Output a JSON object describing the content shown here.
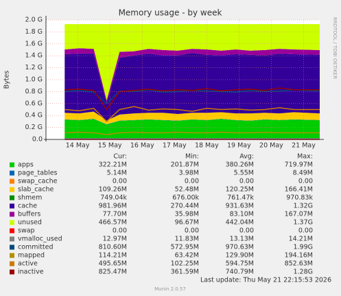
{
  "chart_data": {
    "type": "area",
    "title": "Memory usage - by week",
    "y_label": "Bytes",
    "side_text": "RRDTOOL / TOBI OETIKER",
    "grid": true,
    "x": [
      13.6,
      14.05,
      14.5,
      14.9,
      15.3,
      15.75,
      16.2,
      16.65,
      17.1,
      17.55,
      18.0,
      18.45,
      18.9,
      19.35,
      19.8,
      20.25,
      20.7,
      21.5
    ],
    "xlim": [
      13.02,
      21.5
    ],
    "xticks": [
      {
        "value": 14,
        "label": "14 May"
      },
      {
        "value": 15,
        "label": "15 May"
      },
      {
        "value": 16,
        "label": "16 May"
      },
      {
        "value": 17,
        "label": "17 May"
      },
      {
        "value": 18,
        "label": "18 May"
      },
      {
        "value": 19,
        "label": "19 May"
      },
      {
        "value": 20,
        "label": "20 May"
      },
      {
        "value": 21,
        "label": "21 May"
      }
    ],
    "ylim": [
      0,
      2.0
    ],
    "yticks": [
      {
        "value": 0,
        "label": "0.0"
      },
      {
        "value": 0.2,
        "label": "0.2 G"
      },
      {
        "value": 0.4,
        "label": "0.4 G"
      },
      {
        "value": 0.6,
        "label": "0.6 G"
      },
      {
        "value": 0.8,
        "label": "0.8 G"
      },
      {
        "value": 1.0,
        "label": "1.0 G"
      },
      {
        "value": 1.2,
        "label": "1.2 G"
      },
      {
        "value": 1.4,
        "label": "1.4 G"
      },
      {
        "value": 1.6,
        "label": "1.6 G"
      },
      {
        "value": 1.8,
        "label": "1.8 G"
      },
      {
        "value": 2.0,
        "label": "2.0 G"
      }
    ],
    "legend_headers": [
      "Cur:",
      "Min:",
      "Avg:",
      "Max:"
    ],
    "series": [
      {
        "name": "apps",
        "color": "#00cc00",
        "style": "area",
        "stats": [
          "322.21M",
          "201.87M",
          "380.26M",
          "719.97M"
        ],
        "values": [
          0.33,
          0.32,
          0.34,
          0.25,
          0.31,
          0.32,
          0.33,
          0.32,
          0.31,
          0.33,
          0.32,
          0.34,
          0.32,
          0.31,
          0.33,
          0.32,
          0.33,
          0.32
        ]
      },
      {
        "name": "page_tables",
        "color": "#0066b3",
        "style": "area",
        "stats": [
          "5.14M",
          "3.98M",
          "5.55M",
          "8.49M"
        ],
        "values": [
          0.005,
          0.005,
          0.005,
          0.005,
          0.005,
          0.005,
          0.005,
          0.005,
          0.005,
          0.005,
          0.005,
          0.005,
          0.005,
          0.005,
          0.005,
          0.005,
          0.005,
          0.005
        ]
      },
      {
        "name": "swap_cache",
        "color": "#ff8000",
        "style": "area",
        "stats": [
          "0.00",
          "0.00",
          "0.00",
          "0.00"
        ],
        "values": [
          0,
          0,
          0,
          0,
          0,
          0,
          0,
          0,
          0,
          0,
          0,
          0,
          0,
          0,
          0,
          0,
          0,
          0
        ]
      },
      {
        "name": "slab_cache",
        "color": "#ffcc00",
        "style": "area",
        "stats": [
          "109.26M",
          "52.48M",
          "120.25M",
          "166.41M"
        ],
        "values": [
          0.11,
          0.11,
          0.12,
          0.06,
          0.1,
          0.11,
          0.11,
          0.12,
          0.11,
          0.11,
          0.12,
          0.11,
          0.11,
          0.12,
          0.11,
          0.11,
          0.12,
          0.11
        ]
      },
      {
        "name": "shmem",
        "color": "#008f00",
        "style": "area",
        "stats": [
          "749.04k",
          "676.00k",
          "761.47k",
          "970.83k"
        ],
        "values": [
          0.001,
          0.001,
          0.001,
          0.001,
          0.001,
          0.001,
          0.001,
          0.001,
          0.001,
          0.001,
          0.001,
          0.001,
          0.001,
          0.001,
          0.001,
          0.001,
          0.001,
          0.001
        ]
      },
      {
        "name": "cache",
        "color": "#330099",
        "style": "area",
        "stats": [
          "981.96M",
          "270.44M",
          "931.63M",
          "1.32G"
        ],
        "values": [
          0.98,
          1.0,
          0.97,
          0.3,
          0.95,
          0.97,
          0.99,
          0.96,
          0.98,
          1.0,
          0.97,
          0.95,
          0.99,
          0.98,
          0.96,
          1.0,
          0.97,
          0.98
        ]
      },
      {
        "name": "buffers",
        "color": "#990099",
        "style": "area",
        "stats": [
          "77.70M",
          "35.98M",
          "83.10M",
          "167.07M"
        ],
        "values": [
          0.08,
          0.09,
          0.08,
          0.04,
          0.1,
          0.07,
          0.08,
          0.09,
          0.08,
          0.07,
          0.09,
          0.08,
          0.08,
          0.07,
          0.09,
          0.08,
          0.08,
          0.08
        ]
      },
      {
        "name": "unused",
        "color": "#ccff00",
        "style": "area",
        "stats": [
          "466.57M",
          "96.67M",
          "442.04M",
          "1.37G"
        ],
        "values": [
          0.424,
          0.404,
          0.414,
          1.274,
          0.464,
          0.454,
          0.414,
          0.434,
          0.444,
          0.414,
          0.424,
          0.444,
          0.424,
          0.444,
          0.434,
          0.414,
          0.424,
          0.434
        ]
      },
      {
        "name": "swap",
        "color": "#ff0000",
        "style": "line",
        "stats": [
          "0.00",
          "0.00",
          "0.00",
          "0.00"
        ],
        "values": [
          0,
          0,
          0,
          0,
          0,
          0,
          0,
          0,
          0,
          0,
          0,
          0,
          0,
          0,
          0,
          0,
          0,
          0
        ]
      },
      {
        "name": "vmalloc_used",
        "color": "#808080",
        "style": "line",
        "stats": [
          "12.97M",
          "11.83M",
          "13.13M",
          "14.21M"
        ],
        "values": [
          0.013,
          0.013,
          0.013,
          0.013,
          0.013,
          0.013,
          0.013,
          0.013,
          0.013,
          0.013,
          0.013,
          0.013,
          0.013,
          0.013,
          0.013,
          0.013,
          0.013,
          0.013
        ]
      },
      {
        "name": "committed",
        "color": "#00487d",
        "style": "line",
        "stats": [
          "810.60M",
          "572.95M",
          "970.63M",
          "1.99G"
        ],
        "values": [
          0.8,
          0.82,
          0.79,
          0.6,
          0.81,
          0.8,
          0.83,
          0.79,
          0.8,
          0.82,
          0.81,
          0.8,
          0.79,
          0.82,
          0.8,
          0.81,
          0.83,
          0.81
        ]
      },
      {
        "name": "mapped",
        "color": "#b38f00",
        "style": "line",
        "stats": [
          "114.21M",
          "63.42M",
          "129.90M",
          "194.16M"
        ],
        "values": [
          0.11,
          0.12,
          0.11,
          0.08,
          0.11,
          0.12,
          0.11,
          0.11,
          0.12,
          0.11,
          0.11,
          0.12,
          0.11,
          0.11,
          0.12,
          0.11,
          0.11,
          0.11
        ]
      },
      {
        "name": "active",
        "color": "#cc7a00",
        "style": "line",
        "stats": [
          "495.65M",
          "102.25M",
          "594.75M",
          "852.63M"
        ],
        "values": [
          0.5,
          0.48,
          0.52,
          0.3,
          0.5,
          0.55,
          0.49,
          0.51,
          0.5,
          0.47,
          0.52,
          0.5,
          0.51,
          0.49,
          0.5,
          0.53,
          0.5,
          0.5
        ]
      },
      {
        "name": "inactive",
        "color": "#990000",
        "style": "line",
        "stats": [
          "825.47M",
          "361.59M",
          "740.79M",
          "1.28G"
        ],
        "values": [
          0.83,
          0.84,
          0.82,
          0.5,
          0.8,
          0.82,
          0.84,
          0.81,
          0.83,
          0.82,
          0.85,
          0.81,
          0.83,
          0.84,
          0.82,
          0.86,
          0.83,
          0.83
        ]
      }
    ],
    "last_update": "Last update: Thu May 21 22:15:53 2026",
    "footer": "Munin 2.0.57"
  }
}
